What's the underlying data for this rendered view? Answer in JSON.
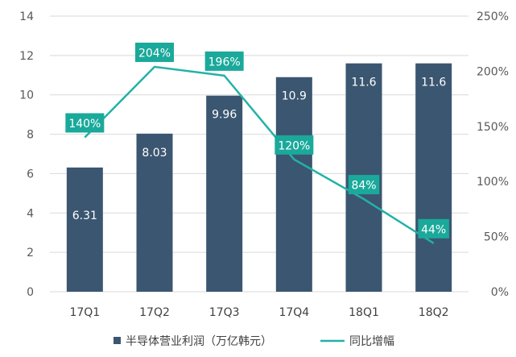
{
  "colors": {
    "bar": "#3b5670",
    "line": "#22b2a6",
    "label_box": "#1aa99a",
    "grid": "#d9d9d9"
  },
  "legend": {
    "bar_label": "半导体营业利润（万亿韩元）",
    "line_label": "同比增幅"
  },
  "chart_data": {
    "type": "bar",
    "categories": [
      "17Q1",
      "17Q2",
      "17Q3",
      "17Q4",
      "18Q1",
      "18Q2"
    ],
    "series": [
      {
        "name": "半导体营业利润（万亿韩元）",
        "type": "bar",
        "axis": "left",
        "values": [
          6.31,
          8.03,
          9.96,
          10.9,
          11.6,
          11.6
        ],
        "labels": [
          "6.31",
          "8.03",
          "9.96",
          "10.9",
          "11.6",
          "11.6"
        ]
      },
      {
        "name": "同比增幅",
        "type": "line",
        "axis": "right",
        "values": [
          140,
          204,
          196,
          120,
          84,
          44
        ],
        "labels": [
          "140%",
          "204%",
          "196%",
          "120%",
          "84%",
          "44%"
        ]
      }
    ],
    "ylim_left": [
      0,
      14
    ],
    "yticks_left": [
      "0",
      "2",
      "4",
      "6",
      "8",
      "10",
      "12",
      "14"
    ],
    "ylim_right": [
      0,
      250
    ],
    "yticks_right": [
      "0%",
      "50%",
      "100%",
      "150%",
      "200%",
      "250%"
    ],
    "grid": true,
    "legend_position": "bottom"
  }
}
